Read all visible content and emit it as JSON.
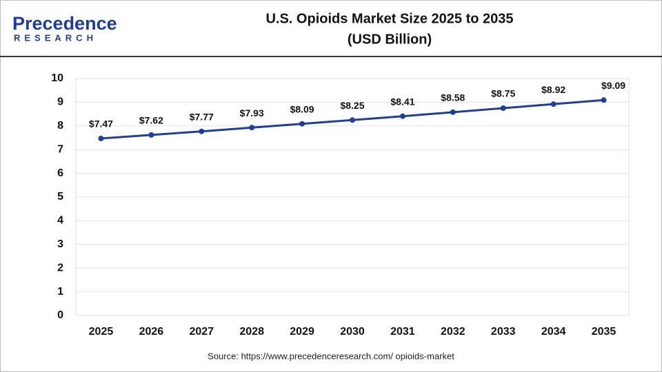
{
  "logo": {
    "name": "Precedence",
    "tagline": "RESEARCH"
  },
  "chart_data": {
    "type": "line",
    "title": "U.S. Opioids Market Size 2025 to 2035",
    "subtitle": "(USD Billion)",
    "source": "Source: https://www.precedenceresearch.com/ opioids-market",
    "categories": [
      "2025",
      "2026",
      "2027",
      "2028",
      "2029",
      "2030",
      "2031",
      "2032",
      "2033",
      "2034",
      "2035"
    ],
    "series": [
      {
        "name": "U.S. Opioids Market Size",
        "color": "#1f3d99",
        "values": [
          7.47,
          7.62,
          7.77,
          7.93,
          8.09,
          8.25,
          8.41,
          8.58,
          8.75,
          8.92,
          9.09
        ],
        "value_labels": [
          "$7.47",
          "$7.62",
          "$7.77",
          "$7.93",
          "$8.09",
          "$8.25",
          "$8.41",
          "$8.58",
          "$8.75",
          "$8.92",
          "$9.09"
        ]
      }
    ],
    "ylim": [
      0,
      10
    ],
    "yticks": [
      0,
      1,
      2,
      3,
      4,
      5,
      6,
      7,
      8,
      9,
      10
    ],
    "grid": true
  }
}
